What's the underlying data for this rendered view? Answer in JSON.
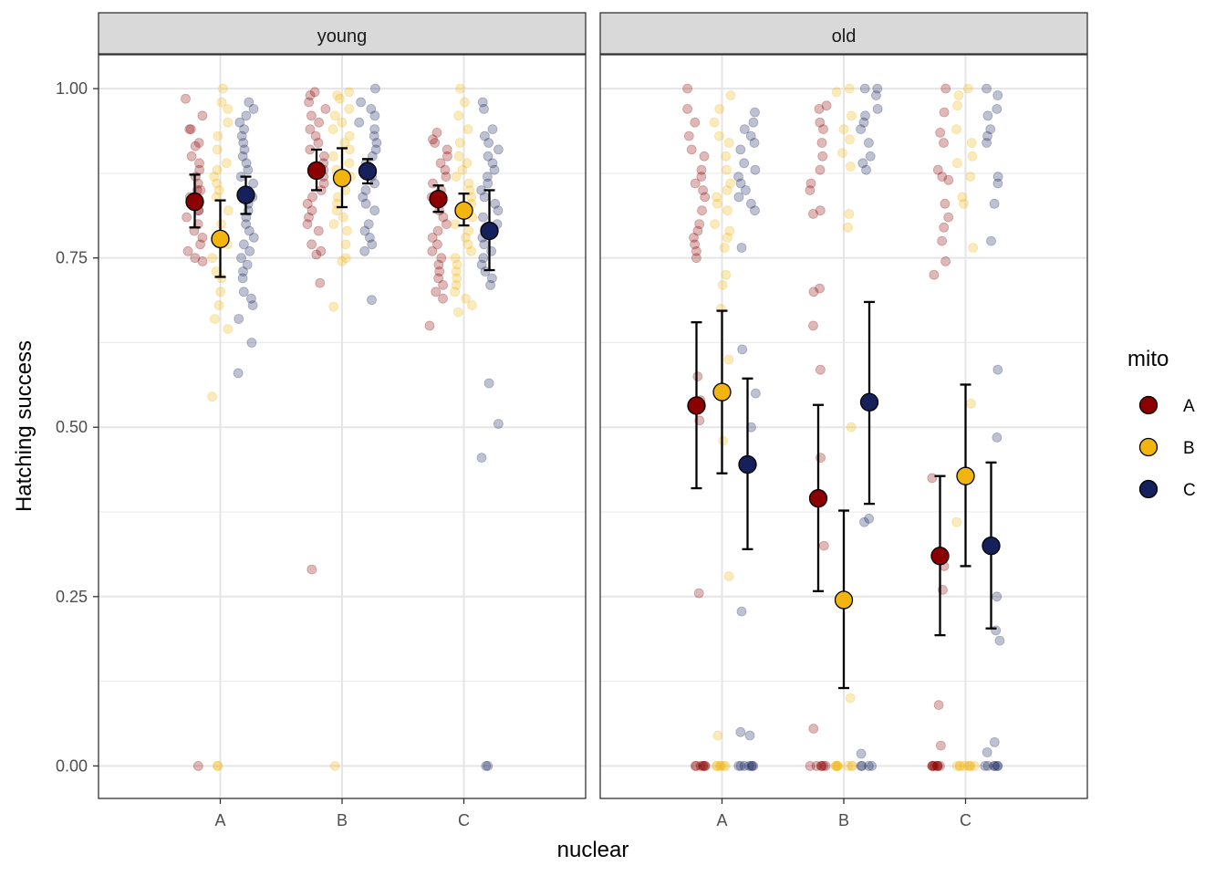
{
  "chart_data": {
    "type": "scatter",
    "ylabel": "Hatching success",
    "xlabel": "nuclear",
    "ylim": [
      -0.048,
      1.05
    ],
    "y_ticks": [
      0.0,
      0.25,
      0.5,
      0.75,
      1.0
    ],
    "y_tick_labels": [
      "0.00",
      "0.25",
      "0.50",
      "0.75",
      "1.00"
    ],
    "categories": [
      "A",
      "B",
      "C"
    ],
    "facets": [
      "young",
      "old"
    ],
    "legend": {
      "title": "mito",
      "position": "right",
      "entries": [
        {
          "label": "A",
          "color": "#8B0000"
        },
        {
          "label": "B",
          "color": "#F2B50F"
        },
        {
          "label": "C",
          "color": "#16205A"
        }
      ]
    },
    "summary_series": [
      {
        "facet": "young",
        "nuclear": "A",
        "mito": "A",
        "mean": 0.833,
        "lower": 0.795,
        "upper": 0.873
      },
      {
        "facet": "young",
        "nuclear": "A",
        "mito": "B",
        "mean": 0.778,
        "lower": 0.722,
        "upper": 0.835
      },
      {
        "facet": "young",
        "nuclear": "A",
        "mito": "C",
        "mean": 0.843,
        "lower": 0.815,
        "upper": 0.87
      },
      {
        "facet": "young",
        "nuclear": "B",
        "mito": "A",
        "mean": 0.879,
        "lower": 0.85,
        "upper": 0.91
      },
      {
        "facet": "young",
        "nuclear": "B",
        "mito": "B",
        "mean": 0.868,
        "lower": 0.825,
        "upper": 0.912
      },
      {
        "facet": "young",
        "nuclear": "B",
        "mito": "C",
        "mean": 0.878,
        "lower": 0.86,
        "upper": 0.896
      },
      {
        "facet": "young",
        "nuclear": "C",
        "mito": "A",
        "mean": 0.837,
        "lower": 0.818,
        "upper": 0.857
      },
      {
        "facet": "young",
        "nuclear": "C",
        "mito": "B",
        "mean": 0.82,
        "lower": 0.798,
        "upper": 0.845
      },
      {
        "facet": "young",
        "nuclear": "C",
        "mito": "C",
        "mean": 0.79,
        "lower": 0.732,
        "upper": 0.85
      },
      {
        "facet": "old",
        "nuclear": "A",
        "mito": "A",
        "mean": 0.532,
        "lower": 0.41,
        "upper": 0.655
      },
      {
        "facet": "old",
        "nuclear": "A",
        "mito": "B",
        "mean": 0.552,
        "lower": 0.432,
        "upper": 0.672
      },
      {
        "facet": "old",
        "nuclear": "A",
        "mito": "C",
        "mean": 0.445,
        "lower": 0.32,
        "upper": 0.572
      },
      {
        "facet": "old",
        "nuclear": "B",
        "mito": "A",
        "mean": 0.395,
        "lower": 0.258,
        "upper": 0.533
      },
      {
        "facet": "old",
        "nuclear": "B",
        "mito": "B",
        "mean": 0.245,
        "lower": 0.115,
        "upper": 0.377
      },
      {
        "facet": "old",
        "nuclear": "B",
        "mito": "C",
        "mean": 0.537,
        "lower": 0.387,
        "upper": 0.685
      },
      {
        "facet": "old",
        "nuclear": "C",
        "mito": "A",
        "mean": 0.31,
        "lower": 0.193,
        "upper": 0.428
      },
      {
        "facet": "old",
        "nuclear": "C",
        "mito": "B",
        "mean": 0.428,
        "lower": 0.295,
        "upper": 0.563
      },
      {
        "facet": "old",
        "nuclear": "C",
        "mito": "C",
        "mean": 0.325,
        "lower": 0.203,
        "upper": 0.448
      }
    ],
    "raw_points": [
      {
        "facet": "young",
        "nuclear": "A",
        "mito": "A",
        "values": [
          0.985,
          0.96,
          0.94,
          0.94,
          0.92,
          0.915,
          0.9,
          0.89,
          0.88,
          0.87,
          0.86,
          0.85,
          0.85,
          0.84,
          0.83,
          0.82,
          0.82,
          0.81,
          0.8,
          0.79,
          0.78,
          0.77,
          0.76,
          0.75,
          0.745,
          0.0
        ]
      },
      {
        "facet": "young",
        "nuclear": "A",
        "mito": "B",
        "values": [
          1.0,
          0.98,
          0.97,
          0.95,
          0.93,
          0.91,
          0.89,
          0.88,
          0.87,
          0.86,
          0.85,
          0.84,
          0.82,
          0.8,
          0.78,
          0.77,
          0.75,
          0.73,
          0.72,
          0.7,
          0.68,
          0.66,
          0.645,
          0.545,
          0.0,
          0.0
        ]
      },
      {
        "facet": "young",
        "nuclear": "A",
        "mito": "C",
        "values": [
          0.98,
          0.97,
          0.96,
          0.95,
          0.94,
          0.93,
          0.92,
          0.91,
          0.9,
          0.89,
          0.88,
          0.87,
          0.86,
          0.85,
          0.84,
          0.83,
          0.82,
          0.81,
          0.8,
          0.79,
          0.78,
          0.77,
          0.76,
          0.75,
          0.74,
          0.73,
          0.72,
          0.7,
          0.69,
          0.68,
          0.66,
          0.625,
          0.58
        ]
      },
      {
        "facet": "young",
        "nuclear": "B",
        "mito": "A",
        "values": [
          0.995,
          0.99,
          0.98,
          0.97,
          0.96,
          0.95,
          0.94,
          0.93,
          0.92,
          0.91,
          0.9,
          0.89,
          0.88,
          0.87,
          0.86,
          0.85,
          0.84,
          0.83,
          0.82,
          0.81,
          0.8,
          0.79,
          0.77,
          0.76,
          0.755,
          0.713,
          0.29
        ]
      },
      {
        "facet": "young",
        "nuclear": "B",
        "mito": "B",
        "values": [
          0.995,
          0.99,
          0.985,
          0.97,
          0.96,
          0.95,
          0.94,
          0.93,
          0.92,
          0.91,
          0.9,
          0.89,
          0.88,
          0.87,
          0.86,
          0.85,
          0.84,
          0.83,
          0.82,
          0.81,
          0.8,
          0.79,
          0.77,
          0.75,
          0.745,
          0.678,
          0.0
        ]
      },
      {
        "facet": "young",
        "nuclear": "B",
        "mito": "C",
        "values": [
          1.0,
          0.98,
          0.97,
          0.96,
          0.95,
          0.94,
          0.93,
          0.92,
          0.91,
          0.9,
          0.89,
          0.88,
          0.87,
          0.86,
          0.85,
          0.84,
          0.83,
          0.82,
          0.8,
          0.79,
          0.78,
          0.77,
          0.76,
          0.688
        ]
      },
      {
        "facet": "young",
        "nuclear": "C",
        "mito": "A",
        "values": [
          0.935,
          0.925,
          0.92,
          0.91,
          0.9,
          0.89,
          0.88,
          0.87,
          0.86,
          0.85,
          0.84,
          0.83,
          0.82,
          0.81,
          0.8,
          0.79,
          0.78,
          0.77,
          0.76,
          0.75,
          0.74,
          0.73,
          0.72,
          0.71,
          0.7,
          0.69,
          0.65
        ]
      },
      {
        "facet": "young",
        "nuclear": "C",
        "mito": "B",
        "values": [
          1.0,
          0.98,
          0.96,
          0.94,
          0.92,
          0.9,
          0.89,
          0.88,
          0.87,
          0.86,
          0.85,
          0.84,
          0.83,
          0.82,
          0.81,
          0.8,
          0.79,
          0.78,
          0.77,
          0.76,
          0.75,
          0.74,
          0.73,
          0.72,
          0.71,
          0.7,
          0.69,
          0.68,
          0.67
        ]
      },
      {
        "facet": "young",
        "nuclear": "C",
        "mito": "C",
        "values": [
          0.98,
          0.97,
          0.94,
          0.93,
          0.92,
          0.91,
          0.9,
          0.89,
          0.88,
          0.87,
          0.86,
          0.85,
          0.84,
          0.83,
          0.82,
          0.81,
          0.8,
          0.79,
          0.78,
          0.77,
          0.76,
          0.75,
          0.74,
          0.73,
          0.72,
          0.71,
          0.565,
          0.505,
          0.455,
          0.0,
          0.0
        ]
      },
      {
        "facet": "old",
        "nuclear": "A",
        "mito": "A",
        "values": [
          1.0,
          0.97,
          0.95,
          0.93,
          0.91,
          0.9,
          0.88,
          0.87,
          0.86,
          0.85,
          0.84,
          0.82,
          0.8,
          0.79,
          0.78,
          0.77,
          0.76,
          0.75,
          0.575,
          0.54,
          0.51,
          0.255,
          0.0,
          0.0,
          0.0,
          0.0,
          0.0,
          0.0,
          0.0
        ]
      },
      {
        "facet": "old",
        "nuclear": "A",
        "mito": "B",
        "values": [
          0.99,
          0.97,
          0.95,
          0.93,
          0.92,
          0.9,
          0.88,
          0.86,
          0.85,
          0.84,
          0.83,
          0.82,
          0.8,
          0.79,
          0.78,
          0.765,
          0.725,
          0.71,
          0.675,
          0.6,
          0.48,
          0.28,
          0.045,
          0.0,
          0.0,
          0.0,
          0.0,
          0.0,
          0.0
        ]
      },
      {
        "facet": "old",
        "nuclear": "A",
        "mito": "C",
        "values": [
          0.965,
          0.95,
          0.94,
          0.93,
          0.92,
          0.91,
          0.89,
          0.88,
          0.87,
          0.86,
          0.85,
          0.84,
          0.83,
          0.82,
          0.765,
          0.615,
          0.55,
          0.5,
          0.228,
          0.05,
          0.045,
          0.0,
          0.0,
          0.0,
          0.0,
          0.0,
          0.0,
          0.0
        ]
      },
      {
        "facet": "old",
        "nuclear": "B",
        "mito": "A",
        "values": [
          0.975,
          0.97,
          0.95,
          0.94,
          0.92,
          0.9,
          0.88,
          0.86,
          0.85,
          0.82,
          0.815,
          0.705,
          0.7,
          0.65,
          0.585,
          0.455,
          0.325,
          0.055,
          0.0,
          0.0,
          0.0,
          0.0,
          0.0,
          0.0
        ]
      },
      {
        "facet": "old",
        "nuclear": "B",
        "mito": "B",
        "values": [
          1.0,
          0.995,
          0.96,
          0.94,
          0.925,
          0.905,
          0.885,
          0.815,
          0.795,
          0.5,
          0.1,
          0.0,
          0.0,
          0.0,
          0.0,
          0.0,
          0.0,
          0.0,
          0.0
        ]
      },
      {
        "facet": "old",
        "nuclear": "B",
        "mito": "C",
        "values": [
          1.0,
          1.0,
          0.99,
          0.97,
          0.96,
          0.95,
          0.94,
          0.92,
          0.9,
          0.89,
          0.88,
          0.365,
          0.36,
          0.018,
          0.0,
          0.0,
          0.0,
          0.0
        ]
      },
      {
        "facet": "old",
        "nuclear": "C",
        "mito": "A",
        "values": [
          1.0,
          0.965,
          0.935,
          0.92,
          0.88,
          0.87,
          0.865,
          0.83,
          0.81,
          0.795,
          0.775,
          0.745,
          0.725,
          0.425,
          0.295,
          0.26,
          0.09,
          0.03,
          0.0,
          0.0,
          0.0,
          0.0,
          0.0,
          0.0,
          0.0,
          0.0
        ]
      },
      {
        "facet": "old",
        "nuclear": "C",
        "mito": "B",
        "values": [
          1.0,
          0.99,
          0.975,
          0.94,
          0.92,
          0.9,
          0.89,
          0.87,
          0.84,
          0.83,
          0.765,
          0.535,
          0.36,
          0.0,
          0.0,
          0.0,
          0.0,
          0.0,
          0.0,
          0.0,
          0.0
        ]
      },
      {
        "facet": "old",
        "nuclear": "C",
        "mito": "C",
        "values": [
          1.0,
          0.99,
          0.97,
          0.96,
          0.94,
          0.93,
          0.92,
          0.87,
          0.86,
          0.83,
          0.775,
          0.585,
          0.485,
          0.25,
          0.2,
          0.185,
          0.035,
          0.02,
          0.0,
          0.0,
          0.0,
          0.0,
          0.0,
          0.0
        ]
      }
    ]
  }
}
